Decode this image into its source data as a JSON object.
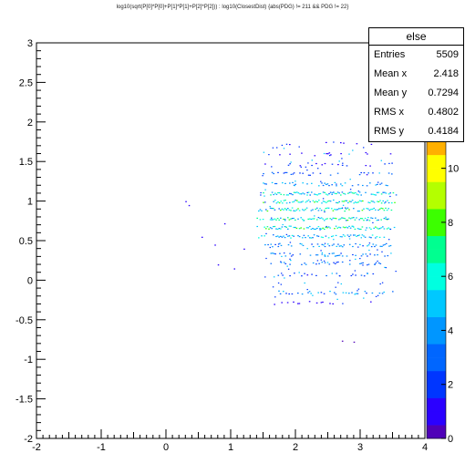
{
  "title": "log10(sqrt(P[0]*P[0]+P[1]*P[1]+P[2]*P[2])) : log10(ClosestDist) {abs(PDG) != 211 && PDG != 22}",
  "stats": {
    "name": "else",
    "rows": [
      {
        "label": "Entries",
        "value": "5509"
      },
      {
        "label": "Mean x",
        "value": "2.418"
      },
      {
        "label": "Mean y",
        "value": "0.7294"
      },
      {
        "label": "RMS x",
        "value": "0.4802"
      },
      {
        "label": "RMS y",
        "value": "0.4184"
      }
    ]
  },
  "chart_data": {
    "type": "heatmap",
    "title": "log10(sqrt(P[0]*P[0]+P[1]*P[1]+P[2]*P[2])) : log10(ClosestDist) {abs(PDG) != 211 && PDG != 22}",
    "xlim": [
      -2,
      4
    ],
    "ylim": [
      -2,
      3
    ],
    "x_ticks": [
      "-2",
      "-1",
      "0",
      "1",
      "2",
      "3",
      "4"
    ],
    "y_ticks": [
      "-2",
      "-1.5",
      "-1",
      "-0.5",
      "0",
      "0.5",
      "1",
      "1.5",
      "2",
      "2.5",
      "3"
    ],
    "colorbar": {
      "range": [
        0,
        11
      ],
      "ticks": [
        "0",
        "2",
        "4",
        "6",
        "8",
        "10"
      ]
    },
    "bands": [
      {
        "y": 1.73,
        "x0": 1.45,
        "x1": 3.5,
        "density": 0.12
      },
      {
        "y": 1.6,
        "x0": 1.5,
        "x1": 3.5,
        "density": 0.15
      },
      {
        "y": 1.47,
        "x0": 1.5,
        "x1": 3.55,
        "density": 0.2
      },
      {
        "y": 1.35,
        "x0": 1.45,
        "x1": 3.55,
        "density": 0.35
      },
      {
        "y": 1.22,
        "x0": 1.45,
        "x1": 3.55,
        "density": 0.55
      },
      {
        "y": 1.1,
        "x0": 1.45,
        "x1": 3.55,
        "density": 0.75
      },
      {
        "y": 1.0,
        "x0": 1.45,
        "x1": 3.55,
        "density": 0.85
      },
      {
        "y": 0.9,
        "x0": 1.4,
        "x1": 3.55,
        "density": 0.8
      },
      {
        "y": 0.78,
        "x0": 1.4,
        "x1": 3.55,
        "density": 0.8
      },
      {
        "y": 0.67,
        "x0": 1.4,
        "x1": 3.55,
        "density": 0.85
      },
      {
        "y": 0.56,
        "x0": 1.4,
        "x1": 3.55,
        "density": 0.65
      },
      {
        "y": 0.45,
        "x0": 1.5,
        "x1": 3.5,
        "density": 0.55
      },
      {
        "y": 0.33,
        "x0": 1.5,
        "x1": 3.5,
        "density": 0.45
      },
      {
        "y": 0.22,
        "x0": 1.5,
        "x1": 3.4,
        "density": 0.4
      },
      {
        "y": 0.08,
        "x0": 1.5,
        "x1": 3.3,
        "density": 0.3
      },
      {
        "y": -0.15,
        "x0": 1.6,
        "x1": 3.55,
        "density": 0.5
      },
      {
        "y": -0.28,
        "x0": 1.6,
        "x1": 3.3,
        "density": 0.15
      },
      {
        "y": -0.78,
        "x0": 1.95,
        "x1": 3.05,
        "density": 0.05
      }
    ],
    "outliers": [
      {
        "x": 0.35,
        "y": 0.95
      },
      {
        "x": 0.55,
        "y": 0.55
      },
      {
        "x": 0.75,
        "y": 0.45
      },
      {
        "x": 0.8,
        "y": 0.2
      },
      {
        "x": 0.9,
        "y": 0.72
      },
      {
        "x": 1.05,
        "y": 0.15
      },
      {
        "x": 1.2,
        "y": 0.4
      },
      {
        "x": 0.3,
        "y": 1.0
      }
    ]
  }
}
